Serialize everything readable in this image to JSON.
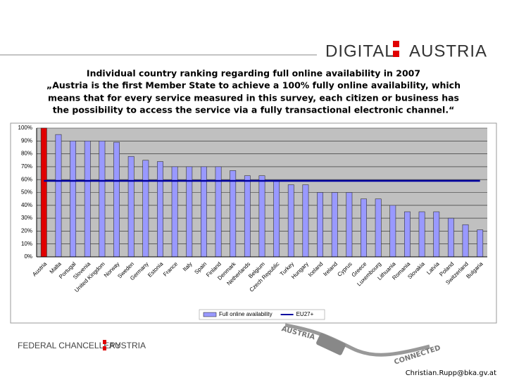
{
  "header": {
    "logo_left": "DIGITAL",
    "logo_right": "AUSTRIA"
  },
  "footer": {
    "logo_left": "FEDERAL CHANCELLERY",
    "logo_right": "AUSTRIA",
    "cable_top": "AUSTRIA",
    "cable_bottom": "CONNECTED",
    "email": "Christian.Rupp@bka.gv.at"
  },
  "chart_data": {
    "type": "bar",
    "title": [
      "Individual country ranking regarding full online availability in 2007",
      "„Austria is the first Member State to achieve a 100% fully online availability, which",
      "means that for every service measured in this survey, each citizen or business has",
      "the possibility to access the service via a fully transactional electronic channel.“"
    ],
    "categories": [
      "Austria",
      "Malta",
      "Portugal",
      "Slovenia",
      "United Kingdom",
      "Norway",
      "Sweden",
      "Germany",
      "Estonia",
      "France",
      "Italy",
      "Spain",
      "Finland",
      "Denmark",
      "Netherlands",
      "Belgium",
      "Czech Republic",
      "Turkey",
      "Hungary",
      "Iceland",
      "Ireland",
      "Cyprus",
      "Greece",
      "Luxembourg",
      "Lithuania",
      "Romania",
      "Slovakia",
      "Latvia",
      "Poland",
      "Switzerland",
      "Bulgaria"
    ],
    "series": [
      {
        "name": "Full online availability",
        "type": "bar",
        "color": "#9999ff",
        "colors": [
          "#e00000",
          "#9999ff",
          "#9999ff",
          "#9999ff",
          "#9999ff",
          "#9999ff",
          "#9999ff",
          "#9999ff",
          "#9999ff",
          "#9999ff",
          "#9999ff",
          "#9999ff",
          "#9999ff",
          "#9999ff",
          "#9999ff",
          "#9999ff",
          "#9999ff",
          "#9999ff",
          "#9999ff",
          "#9999ff",
          "#9999ff",
          "#9999ff",
          "#9999ff",
          "#9999ff",
          "#9999ff",
          "#9999ff",
          "#9999ff",
          "#9999ff",
          "#9999ff",
          "#9999ff",
          "#9999ff"
        ],
        "values": [
          100,
          95,
          90,
          90,
          90,
          89,
          78,
          75,
          74,
          70,
          70,
          70,
          70,
          67,
          63,
          63,
          59,
          56,
          56,
          50,
          50,
          50,
          45,
          45,
          40,
          35,
          35,
          35,
          30,
          25,
          21
        ]
      },
      {
        "name": "EU27+",
        "type": "line",
        "color": "#0000a0",
        "values": [
          59,
          59,
          59,
          59,
          59,
          59,
          59,
          59,
          59,
          59,
          59,
          59,
          59,
          59,
          59,
          59,
          59,
          59,
          59,
          59,
          59,
          59,
          59,
          59,
          59,
          59,
          59,
          59,
          59,
          59,
          59
        ]
      }
    ],
    "ylim": [
      0,
      100
    ],
    "yticks": [
      {
        "value": 0,
        "label": "0%"
      },
      {
        "value": 10,
        "label": "10%"
      },
      {
        "value": 20,
        "label": "20%"
      },
      {
        "value": 30,
        "label": "30%"
      },
      {
        "value": 40,
        "label": "40%"
      },
      {
        "value": 50,
        "label": "50%"
      },
      {
        "value": 60,
        "label": "60%"
      },
      {
        "value": 70,
        "label": "70%"
      },
      {
        "value": 80,
        "label": "80%"
      },
      {
        "value": 90,
        "label": "90%"
      },
      {
        "value": 100,
        "label": "100%"
      }
    ],
    "grid": true,
    "legend": "bottom"
  }
}
